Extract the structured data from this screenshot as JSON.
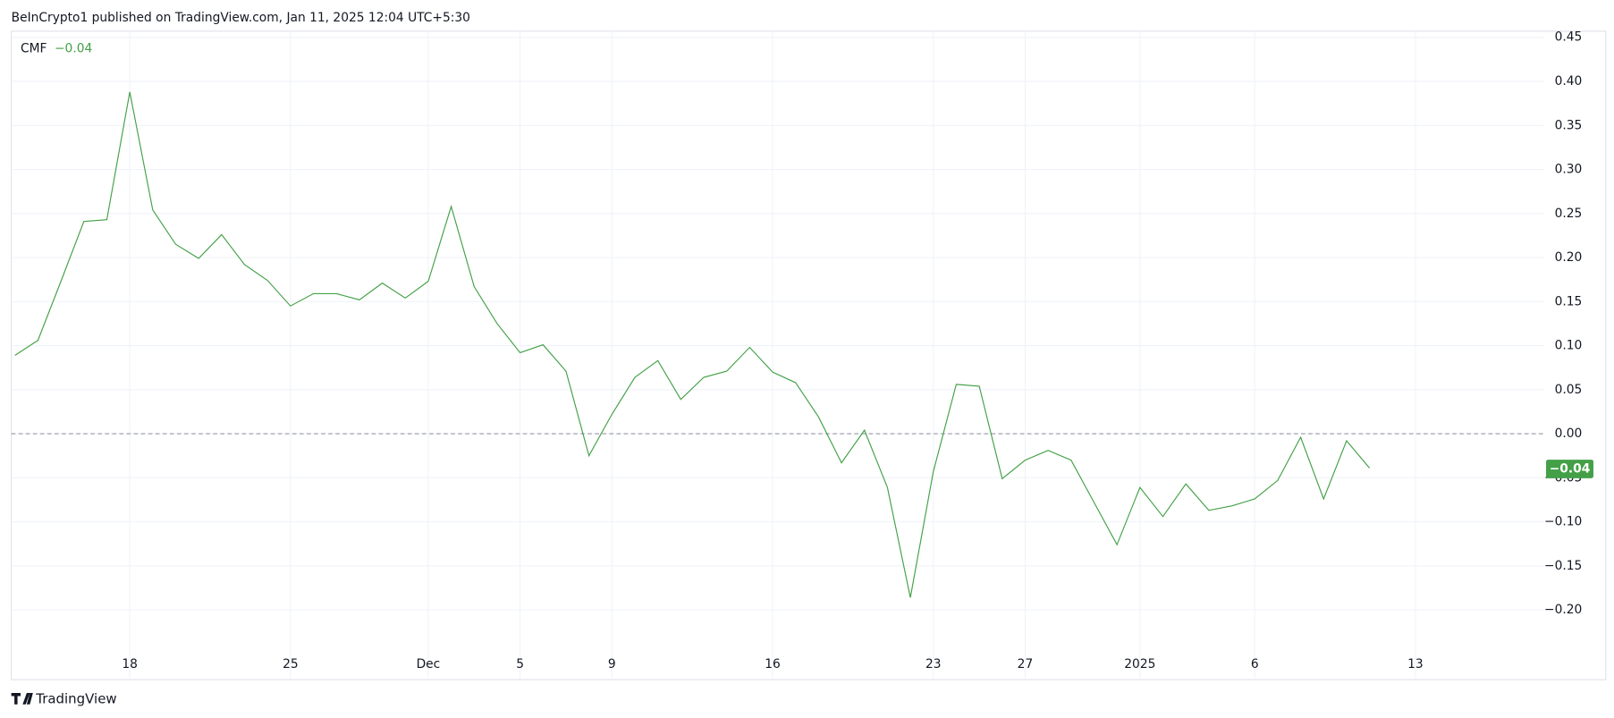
{
  "header": "BeInCrypto1 published on TradingView.com, Jan 11, 2025 12:04 UTC+5:30",
  "footer": "TradingView",
  "chart_data": {
    "type": "line",
    "series": [
      {
        "name": "CMF",
        "color": "#43a047",
        "values": [
          0.089,
          0.106,
          0.173,
          0.241,
          0.243,
          0.388,
          0.254,
          0.215,
          0.199,
          0.226,
          0.192,
          0.174,
          0.145,
          0.159,
          0.159,
          0.152,
          0.171,
          0.154,
          0.173,
          0.258,
          0.167,
          0.125,
          0.092,
          0.101,
          0.071,
          -0.025,
          0.022,
          0.064,
          0.083,
          0.039,
          0.064,
          0.071,
          0.098,
          0.07,
          0.058,
          0.019,
          -0.033,
          0.004,
          -0.061,
          -0.186,
          -0.043,
          0.056,
          0.054,
          -0.051,
          -0.03,
          -0.019,
          -0.03,
          -0.078,
          -0.126,
          -0.061,
          -0.094,
          -0.057,
          -0.087,
          -0.082,
          -0.074,
          -0.053,
          -0.004,
          -0.074,
          -0.008,
          -0.039
        ],
        "last_value": {
          "value": -0.04,
          "label": "−0.04"
        }
      }
    ],
    "xlim": [
      -0.16,
      66.6
    ],
    "xticks": [
      {
        "value": 5,
        "label": "18"
      },
      {
        "value": 12,
        "label": "25"
      },
      {
        "value": 18,
        "label": "Dec"
      },
      {
        "value": 22,
        "label": "5"
      },
      {
        "value": 26,
        "label": "9"
      },
      {
        "value": 33,
        "label": "16"
      },
      {
        "value": 40,
        "label": "23"
      },
      {
        "value": 44,
        "label": "27"
      },
      {
        "value": 49,
        "label": "2025"
      },
      {
        "value": 54,
        "label": "6"
      },
      {
        "value": 61,
        "label": "13"
      }
    ],
    "ylim": [
      -0.278,
      0.457
    ],
    "yticks": [
      {
        "value": 0.45,
        "label": "0.45"
      },
      {
        "value": 0.4,
        "label": "0.40"
      },
      {
        "value": 0.35,
        "label": "0.35"
      },
      {
        "value": 0.3,
        "label": "0.30"
      },
      {
        "value": 0.25,
        "label": "0.25"
      },
      {
        "value": 0.2,
        "label": "0.20"
      },
      {
        "value": 0.15,
        "label": "0.15"
      },
      {
        "value": 0.1,
        "label": "0.10"
      },
      {
        "value": 0.05,
        "label": "0.05"
      },
      {
        "value": 0,
        "label": "0.00"
      },
      {
        "value": -0.05,
        "label": "−0.05"
      },
      {
        "value": -0.1,
        "label": "−0.10"
      },
      {
        "value": -0.15,
        "label": "−0.15"
      },
      {
        "value": -0.2,
        "label": "−0.20"
      }
    ],
    "zero_line": 0,
    "grid": true
  }
}
